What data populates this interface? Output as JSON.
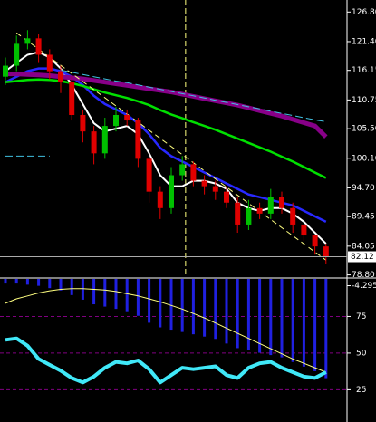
{
  "chart_data": [
    {
      "type": "candlestick",
      "open": [
        115,
        117,
        121,
        122,
        119,
        116,
        114,
        108,
        105,
        101,
        106,
        108,
        107,
        100,
        94,
        91,
        97,
        99,
        96,
        95,
        94,
        92,
        88,
        91,
        90,
        93,
        91,
        88,
        86,
        84
      ],
      "high": [
        118.5,
        122.5,
        123.5,
        122.8,
        120,
        117,
        115,
        109,
        106,
        107.5,
        109.5,
        109,
        107.5,
        101,
        95,
        98.5,
        100.5,
        99.5,
        97,
        96,
        95,
        93,
        92.5,
        92,
        94.5,
        94,
        92,
        88,
        86,
        84.5
      ],
      "low": [
        113.5,
        116,
        120,
        117.5,
        114.5,
        112,
        107,
        103,
        99,
        100,
        105,
        106,
        98.5,
        92,
        89,
        90,
        96,
        95,
        93.5,
        92.5,
        91,
        86.5,
        87,
        89,
        89,
        90,
        86.5,
        85,
        82.5,
        80.8
      ],
      "close": [
        117,
        121,
        122,
        119,
        116,
        114,
        108,
        105,
        101,
        106,
        108,
        107,
        100,
        94,
        91,
        97,
        99,
        96,
        95,
        94,
        92,
        88,
        91,
        90,
        93,
        91,
        88,
        86,
        84,
        82.12
      ],
      "up_color": "#00c000",
      "down_color": "#e00000",
      "series": [
        {
          "color": "#ffffff",
          "values": [
            116,
            117.5,
            119,
            119.5,
            118.5,
            116.5,
            113.5,
            110,
            106.5,
            105,
            105.5,
            106,
            104.5,
            101,
            97,
            95,
            95,
            96,
            96,
            95.5,
            94.5,
            92,
            91,
            90.5,
            91,
            91,
            90,
            88.5,
            86.5,
            84.5
          ]
        },
        {
          "color": "#2828ff",
          "values": [
            114,
            115,
            116,
            116.5,
            116.5,
            116,
            115,
            113.5,
            111.5,
            110,
            109,
            108,
            106.5,
            104.5,
            102,
            100.5,
            99.5,
            98.5,
            97.5,
            96.5,
            95.5,
            94.5,
            93.5,
            93,
            92.5,
            92,
            91.5,
            90.5,
            89.5,
            88.5
          ]
        },
        {
          "color": "#00e000",
          "values": [
            114,
            114.2,
            114.4,
            114.5,
            114.4,
            114.2,
            113.8,
            113.3,
            112.7,
            112.1,
            111.6,
            111.1,
            110.5,
            109.8,
            108.9,
            108.1,
            107.4,
            106.7,
            106,
            105.3,
            104.5,
            103.7,
            102.9,
            102.1,
            101.3,
            100.4,
            99.5,
            98.5,
            97.5,
            96.5
          ]
        },
        {
          "color": "#880088",
          "values": [
            115.5,
            115.5,
            115.4,
            115.3,
            115.2,
            115,
            114.8,
            114.6,
            114.3,
            114,
            113.7,
            113.4,
            113.1,
            112.8,
            112.5,
            112.2,
            111.8,
            111.4,
            111,
            110.6,
            110.2,
            109.8,
            109.3,
            108.8,
            108.3,
            107.8,
            107.2,
            106.6,
            106,
            104
          ]
        },
        {
          "color": "#40c0e0",
          "dashed": true,
          "values": [
            null,
            null,
            null,
            null,
            null,
            116.2,
            115.8,
            115.4,
            115.0,
            114.6,
            114.2,
            113.9,
            113.5,
            113.1,
            112.7,
            112.3,
            111.9,
            111.5,
            111.1,
            110.7,
            110.3,
            109.9,
            109.5,
            109.1,
            108.7,
            108.3,
            107.9,
            107.5,
            107.1,
            106.8
          ]
        },
        {
          "color": "#40c0e0",
          "dashed": true,
          "values": [
            100.5,
            100.5,
            100.5,
            100.5,
            100.5,
            null,
            null,
            null,
            null,
            null,
            null,
            null,
            null,
            null,
            null,
            null,
            null,
            null,
            null,
            null,
            null,
            null,
            null,
            null,
            null,
            null,
            null,
            null,
            null,
            null
          ]
        }
      ],
      "trendline": {
        "x": [
          1,
          29
        ],
        "values": [
          123,
          81.5
        ],
        "color": "#ffff80"
      },
      "vline": {
        "x": 16.3,
        "color": "#ffff80"
      },
      "last_price": 82.12,
      "ylim": [
        78.4,
        129
      ],
      "yticks": [
        {
          "value": 126.8,
          "label": "126.80"
        },
        {
          "value": 121.4,
          "label": "121.40"
        },
        {
          "value": 116.15,
          "label": "116.15"
        },
        {
          "value": 110.75,
          "label": "110.75"
        },
        {
          "value": 105.5,
          "label": "105.50"
        },
        {
          "value": 100.1,
          "label": "100.10"
        },
        {
          "value": 94.7,
          "label": "94.70"
        },
        {
          "value": 89.45,
          "label": "89.45"
        },
        {
          "value": 84.05,
          "label": "84.05"
        },
        {
          "value": 78.8,
          "label": "78.80"
        }
      ]
    },
    {
      "type": "oscillator",
      "ylim": [
        3,
        100.6
      ],
      "yticks": [
        75,
        50,
        25
      ],
      "grid_color": "#800080",
      "y2lim": [
        -10.2,
        -4.0
      ],
      "y2ticks": [
        {
          "value": -4.295,
          "label": "-4.295"
        }
      ],
      "series": [
        {
          "type": "bar",
          "axis": "y2",
          "color": "#2020e0",
          "values": [
            -4.2,
            -4.2,
            -4.25,
            -4.3,
            -4.4,
            -4.5,
            -4.7,
            -4.9,
            -5.1,
            -5.2,
            -5.3,
            -5.4,
            -5.6,
            -5.9,
            -6.1,
            -6.2,
            -6.3,
            -6.4,
            -6.5,
            -6.6,
            -6.8,
            -7.0,
            -7.1,
            -7.2,
            -7.3,
            -7.4,
            -7.6,
            -7.8,
            -8.0,
            -8.3
          ]
        },
        {
          "type": "line",
          "color": "#ffff80",
          "width": 1,
          "values": [
            84,
            87,
            89,
            91,
            92.5,
            93.5,
            94,
            94,
            93.5,
            93,
            92,
            90.5,
            89,
            87,
            85,
            82.5,
            80,
            77,
            74,
            70.5,
            67,
            63.5,
            60,
            56.5,
            53,
            49.5,
            46,
            43,
            40,
            37
          ]
        },
        {
          "type": "line",
          "color": "#40e8f8",
          "width": 4,
          "values": [
            59,
            60,
            55,
            46,
            42,
            38,
            33,
            30,
            34,
            40,
            44,
            43,
            45,
            39,
            30,
            35,
            40,
            39,
            40,
            41,
            35,
            33,
            40,
            43,
            44,
            40,
            37,
            34,
            33,
            37
          ]
        }
      ]
    }
  ]
}
